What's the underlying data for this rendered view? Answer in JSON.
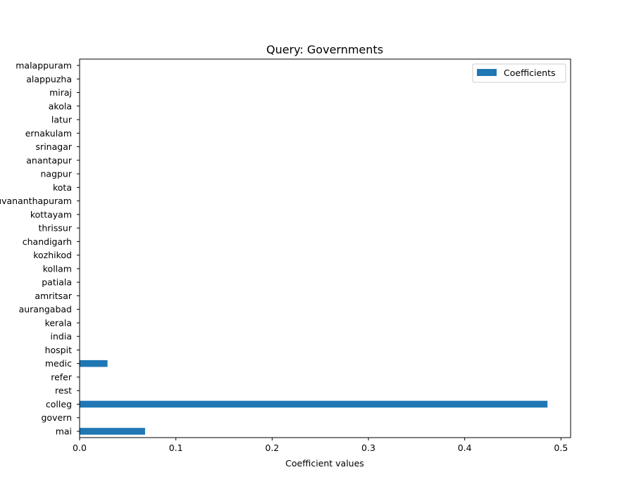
{
  "chart_data": {
    "type": "bar",
    "orientation": "horizontal",
    "title": "Query: Governments",
    "xlabel": "Coefficient values",
    "ylabel": "",
    "xlim": [
      0,
      0.51
    ],
    "xticks": [
      0.0,
      0.1,
      0.2,
      0.3,
      0.4,
      0.5
    ],
    "xtick_labels": [
      "0.0",
      "0.1",
      "0.2",
      "0.3",
      "0.4",
      "0.5"
    ],
    "grid": false,
    "legend_position": "top-right",
    "categories": [
      "mai",
      "govern",
      "colleg",
      "rest",
      "refer",
      "medic",
      "hospit",
      "india",
      "kerala",
      "aurangabad",
      "amritsar",
      "patiala",
      "kollam",
      "kozhikod",
      "chandigarh",
      "thrissur",
      "kottayam",
      "thiruvananthapuram",
      "kota",
      "nagpur",
      "anantapur",
      "srinagar",
      "ernakulam",
      "latur",
      "akola",
      "miraj",
      "alappuzha",
      "malappuram"
    ],
    "series": [
      {
        "name": "Coefficients",
        "color": "#1f77b4",
        "values": [
          0.068,
          0.0,
          0.486,
          0.0,
          0.0,
          0.029,
          0.0,
          0.0,
          0.0,
          0.0,
          0.0,
          0.0,
          0.0,
          0.0,
          0.0,
          0.0,
          0.0,
          0.0,
          0.0,
          0.0,
          0.0,
          0.0,
          0.0,
          0.0,
          0.0,
          0.0,
          0.0,
          0.0
        ]
      }
    ]
  }
}
